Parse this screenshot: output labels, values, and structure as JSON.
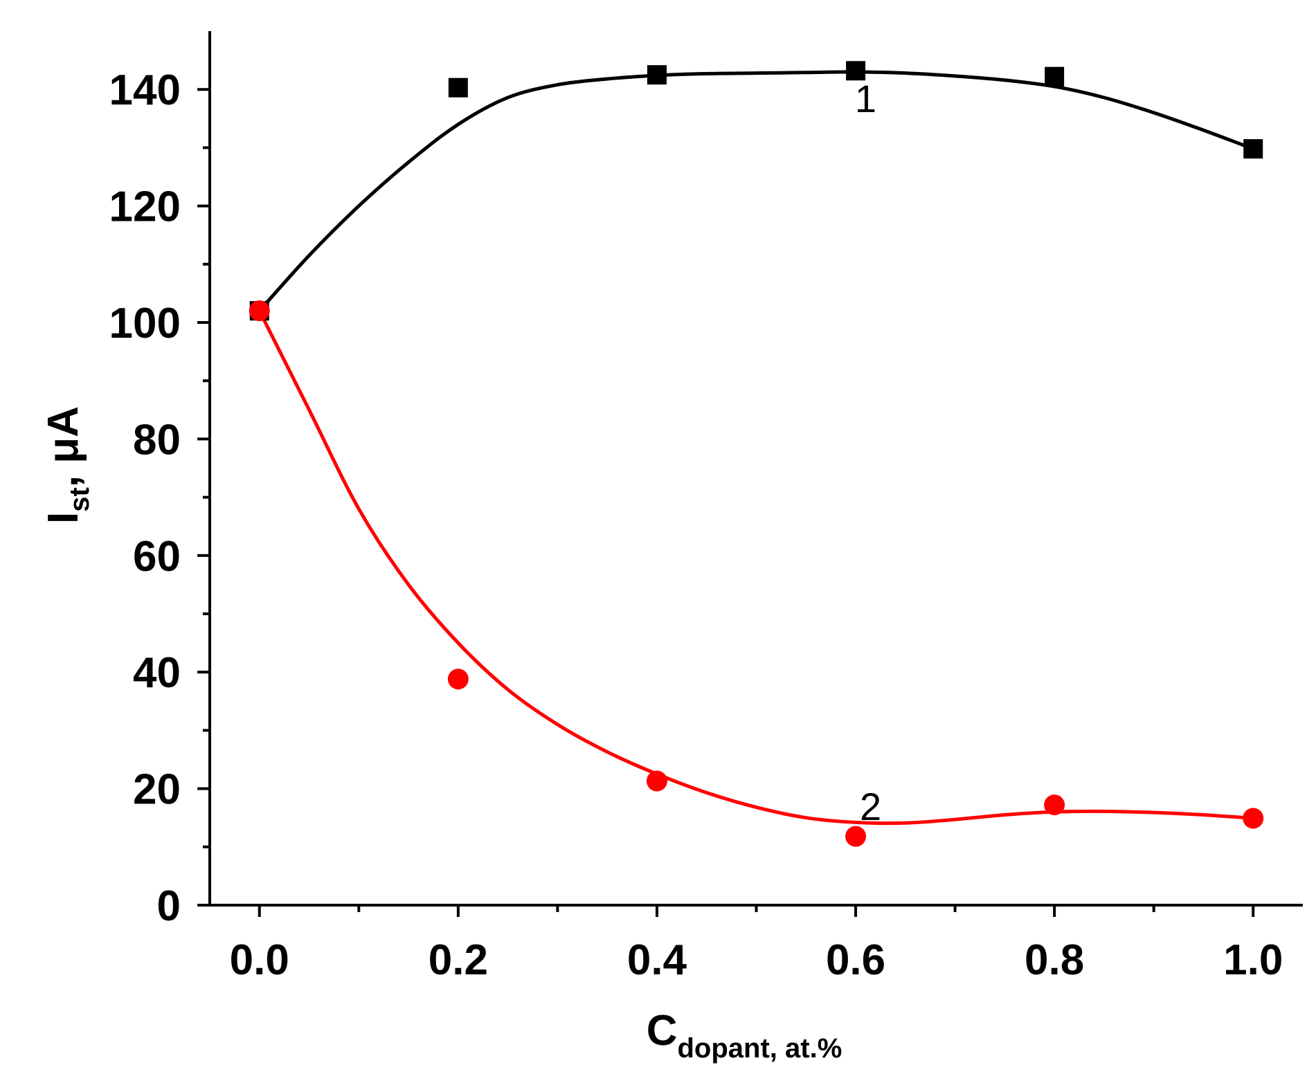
{
  "chart_data": {
    "type": "scatter",
    "xlabel": {
      "main": "C",
      "sub": "dopant, at.%"
    },
    "ylabel": {
      "main": "I",
      "sub": "st",
      "suffix": ", μA"
    },
    "xlim": [
      -0.05,
      1.05
    ],
    "ylim": [
      0,
      150
    ],
    "x_ticks": [
      0.0,
      0.2,
      0.4,
      0.6,
      0.8,
      1.0
    ],
    "x_tick_labels": [
      "0.0",
      "0.2",
      "0.4",
      "0.6",
      "0.8",
      "1.0"
    ],
    "y_ticks": [
      0,
      20,
      40,
      60,
      80,
      100,
      120,
      140
    ],
    "y_tick_labels": [
      "0",
      "20",
      "40",
      "60",
      "80",
      "100",
      "120",
      "140"
    ],
    "grid": false,
    "legend": "none",
    "series": [
      {
        "label": "1",
        "color": "#000000",
        "marker": "square",
        "x": [
          0.0,
          0.2,
          0.4,
          0.6,
          0.8,
          1.0
        ],
        "y": [
          102,
          140.3,
          142.5,
          143.2,
          142.2,
          129.8
        ],
        "fit_x": [
          0.0,
          0.05,
          0.1,
          0.15,
          0.2,
          0.25,
          0.3,
          0.35,
          0.4,
          0.45,
          0.5,
          0.55,
          0.6,
          0.65,
          0.7,
          0.75,
          0.8,
          0.85,
          0.9,
          0.95,
          1.0
        ],
        "fit_y": [
          102,
          111.5,
          120,
          127.5,
          134,
          138.6,
          140.8,
          141.8,
          142.4,
          142.7,
          142.8,
          142.9,
          143,
          142.8,
          142.3,
          141.6,
          140.5,
          138.6,
          136,
          133,
          129.8
        ]
      },
      {
        "label": "2",
        "color": "#ff0000",
        "marker": "circle",
        "x": [
          0.0,
          0.2,
          0.4,
          0.6,
          0.8,
          1.0
        ],
        "y": [
          102,
          38.8,
          21.3,
          11.8,
          17.2,
          14.9
        ],
        "fit_x": [
          0.0,
          0.05,
          0.1,
          0.15,
          0.2,
          0.25,
          0.3,
          0.35,
          0.4,
          0.45,
          0.5,
          0.55,
          0.6,
          0.65,
          0.7,
          0.75,
          0.8,
          0.85,
          0.9,
          0.95,
          1.0
        ],
        "fit_y": [
          102,
          85,
          68,
          55,
          45,
          37,
          31,
          26.3,
          22.5,
          19.3,
          16.8,
          15,
          14.2,
          14.1,
          14.7,
          15.5,
          16,
          16.1,
          15.9,
          15.5,
          14.9
        ]
      }
    ]
  }
}
